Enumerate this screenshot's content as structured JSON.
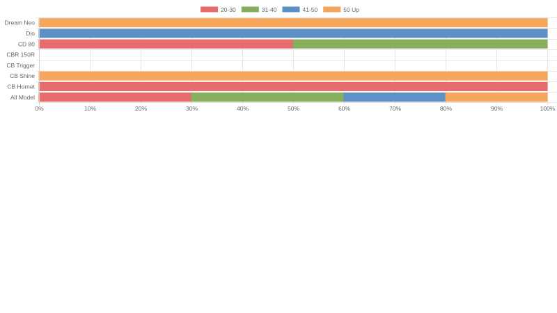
{
  "chart_data": {
    "type": "bar",
    "orientation": "horizontal",
    "stacked": true,
    "categories": [
      "Dream Neo",
      "Dio",
      "CD 80",
      "CBR 150R",
      "CB Trigger",
      "CB Shine",
      "CB Hornet",
      "All Model"
    ],
    "series": [
      {
        "name": "20-30",
        "color": "#e8696b",
        "values": [
          0,
          0,
          50,
          0,
          0,
          0,
          100,
          30
        ]
      },
      {
        "name": "31-40",
        "color": "#86ad5a",
        "values": [
          0,
          0,
          50,
          0,
          0,
          0,
          0,
          30
        ]
      },
      {
        "name": "41-50",
        "color": "#5b8fc4",
        "values": [
          0,
          100,
          0,
          0,
          0,
          0,
          0,
          20
        ]
      },
      {
        "name": "50 Up",
        "color": "#f5a55b",
        "values": [
          100,
          0,
          0,
          0,
          0,
          100,
          0,
          20
        ]
      }
    ],
    "xlim": [
      0,
      100
    ],
    "x_ticks": [
      "0%",
      "10%",
      "20%",
      "30%",
      "40%",
      "50%",
      "60%",
      "70%",
      "80%",
      "90%",
      "100%"
    ],
    "legend_position": "top",
    "grid": true
  }
}
